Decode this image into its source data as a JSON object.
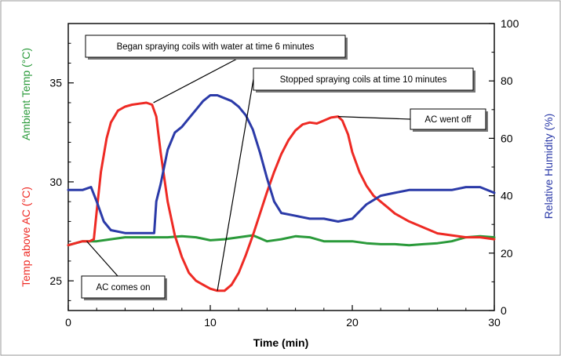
{
  "chart_data": {
    "type": "line",
    "xlabel": "Time (min)",
    "xlim": [
      0,
      30
    ],
    "x_ticks": [
      0,
      10,
      20,
      30
    ],
    "y_left": {
      "ylim": [
        23.5,
        38
      ],
      "ticks": [
        25,
        30,
        35
      ],
      "label_red": "Temp above AC (°C)",
      "label_green": "Ambient Temp (°C)"
    },
    "y_right": {
      "ylim": [
        0,
        100
      ],
      "ticks": [
        0,
        20,
        40,
        60,
        80,
        100
      ],
      "label": "Relative Humidity (%)"
    },
    "colors": {
      "red": "#ee2a24",
      "green": "#2a9a3a",
      "blue": "#2b3aa8"
    },
    "series": [
      {
        "axis": "left",
        "color": "red",
        "points": [
          [
            0,
            26.8
          ],
          [
            0.5,
            26.9
          ],
          [
            1,
            27.0
          ],
          [
            1.5,
            27.0
          ],
          [
            1.8,
            27.1
          ],
          [
            2.0,
            28.5
          ],
          [
            2.3,
            30.5
          ],
          [
            2.7,
            32.2
          ],
          [
            3.0,
            33.0
          ],
          [
            3.5,
            33.6
          ],
          [
            4,
            33.8
          ],
          [
            4.5,
            33.9
          ],
          [
            5,
            33.95
          ],
          [
            5.5,
            34.0
          ],
          [
            5.9,
            33.9
          ],
          [
            6.2,
            33.3
          ],
          [
            6.5,
            31.5
          ],
          [
            7,
            29.0
          ],
          [
            7.5,
            27.3
          ],
          [
            8,
            26.2
          ],
          [
            8.5,
            25.4
          ],
          [
            9,
            25.0
          ],
          [
            9.5,
            24.8
          ],
          [
            10,
            24.6
          ],
          [
            10.5,
            24.5
          ],
          [
            11,
            24.5
          ],
          [
            11.5,
            24.8
          ],
          [
            12,
            25.4
          ],
          [
            12.5,
            26.3
          ],
          [
            13,
            27.3
          ],
          [
            13.5,
            28.4
          ],
          [
            14,
            29.5
          ],
          [
            14.5,
            30.5
          ],
          [
            15,
            31.4
          ],
          [
            15.5,
            32.1
          ],
          [
            16,
            32.6
          ],
          [
            16.5,
            32.9
          ],
          [
            17,
            33.0
          ],
          [
            17.5,
            32.95
          ],
          [
            18,
            33.1
          ],
          [
            18.5,
            33.25
          ],
          [
            19,
            33.3
          ],
          [
            19.3,
            33.1
          ],
          [
            19.7,
            32.4
          ],
          [
            20,
            31.5
          ],
          [
            20.5,
            30.5
          ],
          [
            21,
            29.8
          ],
          [
            21.5,
            29.3
          ],
          [
            22,
            29.0
          ],
          [
            22.5,
            28.7
          ],
          [
            23,
            28.4
          ],
          [
            24,
            28.0
          ],
          [
            25,
            27.7
          ],
          [
            26,
            27.4
          ],
          [
            27,
            27.3
          ],
          [
            28,
            27.2
          ],
          [
            29,
            27.2
          ],
          [
            30,
            27.1
          ]
        ]
      },
      {
        "axis": "left",
        "color": "green",
        "points": [
          [
            0,
            26.8
          ],
          [
            1,
            27.0
          ],
          [
            2,
            27.0
          ],
          [
            3,
            27.1
          ],
          [
            4,
            27.2
          ],
          [
            5,
            27.2
          ],
          [
            6,
            27.2
          ],
          [
            7,
            27.2
          ],
          [
            8,
            27.25
          ],
          [
            9,
            27.2
          ],
          [
            10,
            27.05
          ],
          [
            11,
            27.1
          ],
          [
            12,
            27.2
          ],
          [
            13,
            27.3
          ],
          [
            13.5,
            27.15
          ],
          [
            14,
            27.0
          ],
          [
            15,
            27.1
          ],
          [
            16,
            27.25
          ],
          [
            17,
            27.2
          ],
          [
            18,
            27.0
          ],
          [
            19,
            27.0
          ],
          [
            20,
            27.0
          ],
          [
            21,
            26.9
          ],
          [
            22,
            26.85
          ],
          [
            23,
            26.85
          ],
          [
            24,
            26.8
          ],
          [
            25,
            26.85
          ],
          [
            26,
            26.9
          ],
          [
            27,
            27.0
          ],
          [
            28,
            27.2
          ],
          [
            29,
            27.25
          ],
          [
            30,
            27.2
          ]
        ]
      },
      {
        "axis": "right",
        "color": "blue",
        "points": [
          [
            0,
            42
          ],
          [
            1,
            42
          ],
          [
            1.6,
            43
          ],
          [
            2,
            38
          ],
          [
            2.5,
            31
          ],
          [
            3,
            28
          ],
          [
            4,
            27
          ],
          [
            5,
            27
          ],
          [
            6,
            27
          ],
          [
            6.05,
            27
          ],
          [
            6.2,
            38
          ],
          [
            6.5,
            44
          ],
          [
            7,
            56
          ],
          [
            7.5,
            62
          ],
          [
            8,
            64
          ],
          [
            8.5,
            67
          ],
          [
            9,
            70
          ],
          [
            9.5,
            73
          ],
          [
            10,
            75
          ],
          [
            10.5,
            75
          ],
          [
            11,
            74
          ],
          [
            11.5,
            73
          ],
          [
            12,
            71
          ],
          [
            12.5,
            68
          ],
          [
            13,
            63
          ],
          [
            13.5,
            55
          ],
          [
            14,
            46
          ],
          [
            14.5,
            38
          ],
          [
            15,
            34
          ],
          [
            16,
            33
          ],
          [
            17,
            32
          ],
          [
            18,
            32
          ],
          [
            19,
            31
          ],
          [
            20,
            32
          ],
          [
            21,
            37
          ],
          [
            22,
            40
          ],
          [
            23,
            41
          ],
          [
            24,
            42
          ],
          [
            25,
            42
          ],
          [
            26,
            42
          ],
          [
            27,
            42
          ],
          [
            28,
            43
          ],
          [
            29,
            43
          ],
          [
            30,
            41
          ]
        ]
      }
    ],
    "annotations": [
      {
        "text": "Began spraying coils with water at time 6 minutes",
        "point": [
          6,
          34.0
        ]
      },
      {
        "text": "Stopped spraying coils at time 10 minutes",
        "point": [
          10.5,
          24.5
        ]
      },
      {
        "text": "AC went off",
        "point": [
          19,
          33.3
        ]
      },
      {
        "text": "AC comes on",
        "point": [
          1.3,
          27.0
        ]
      }
    ]
  }
}
